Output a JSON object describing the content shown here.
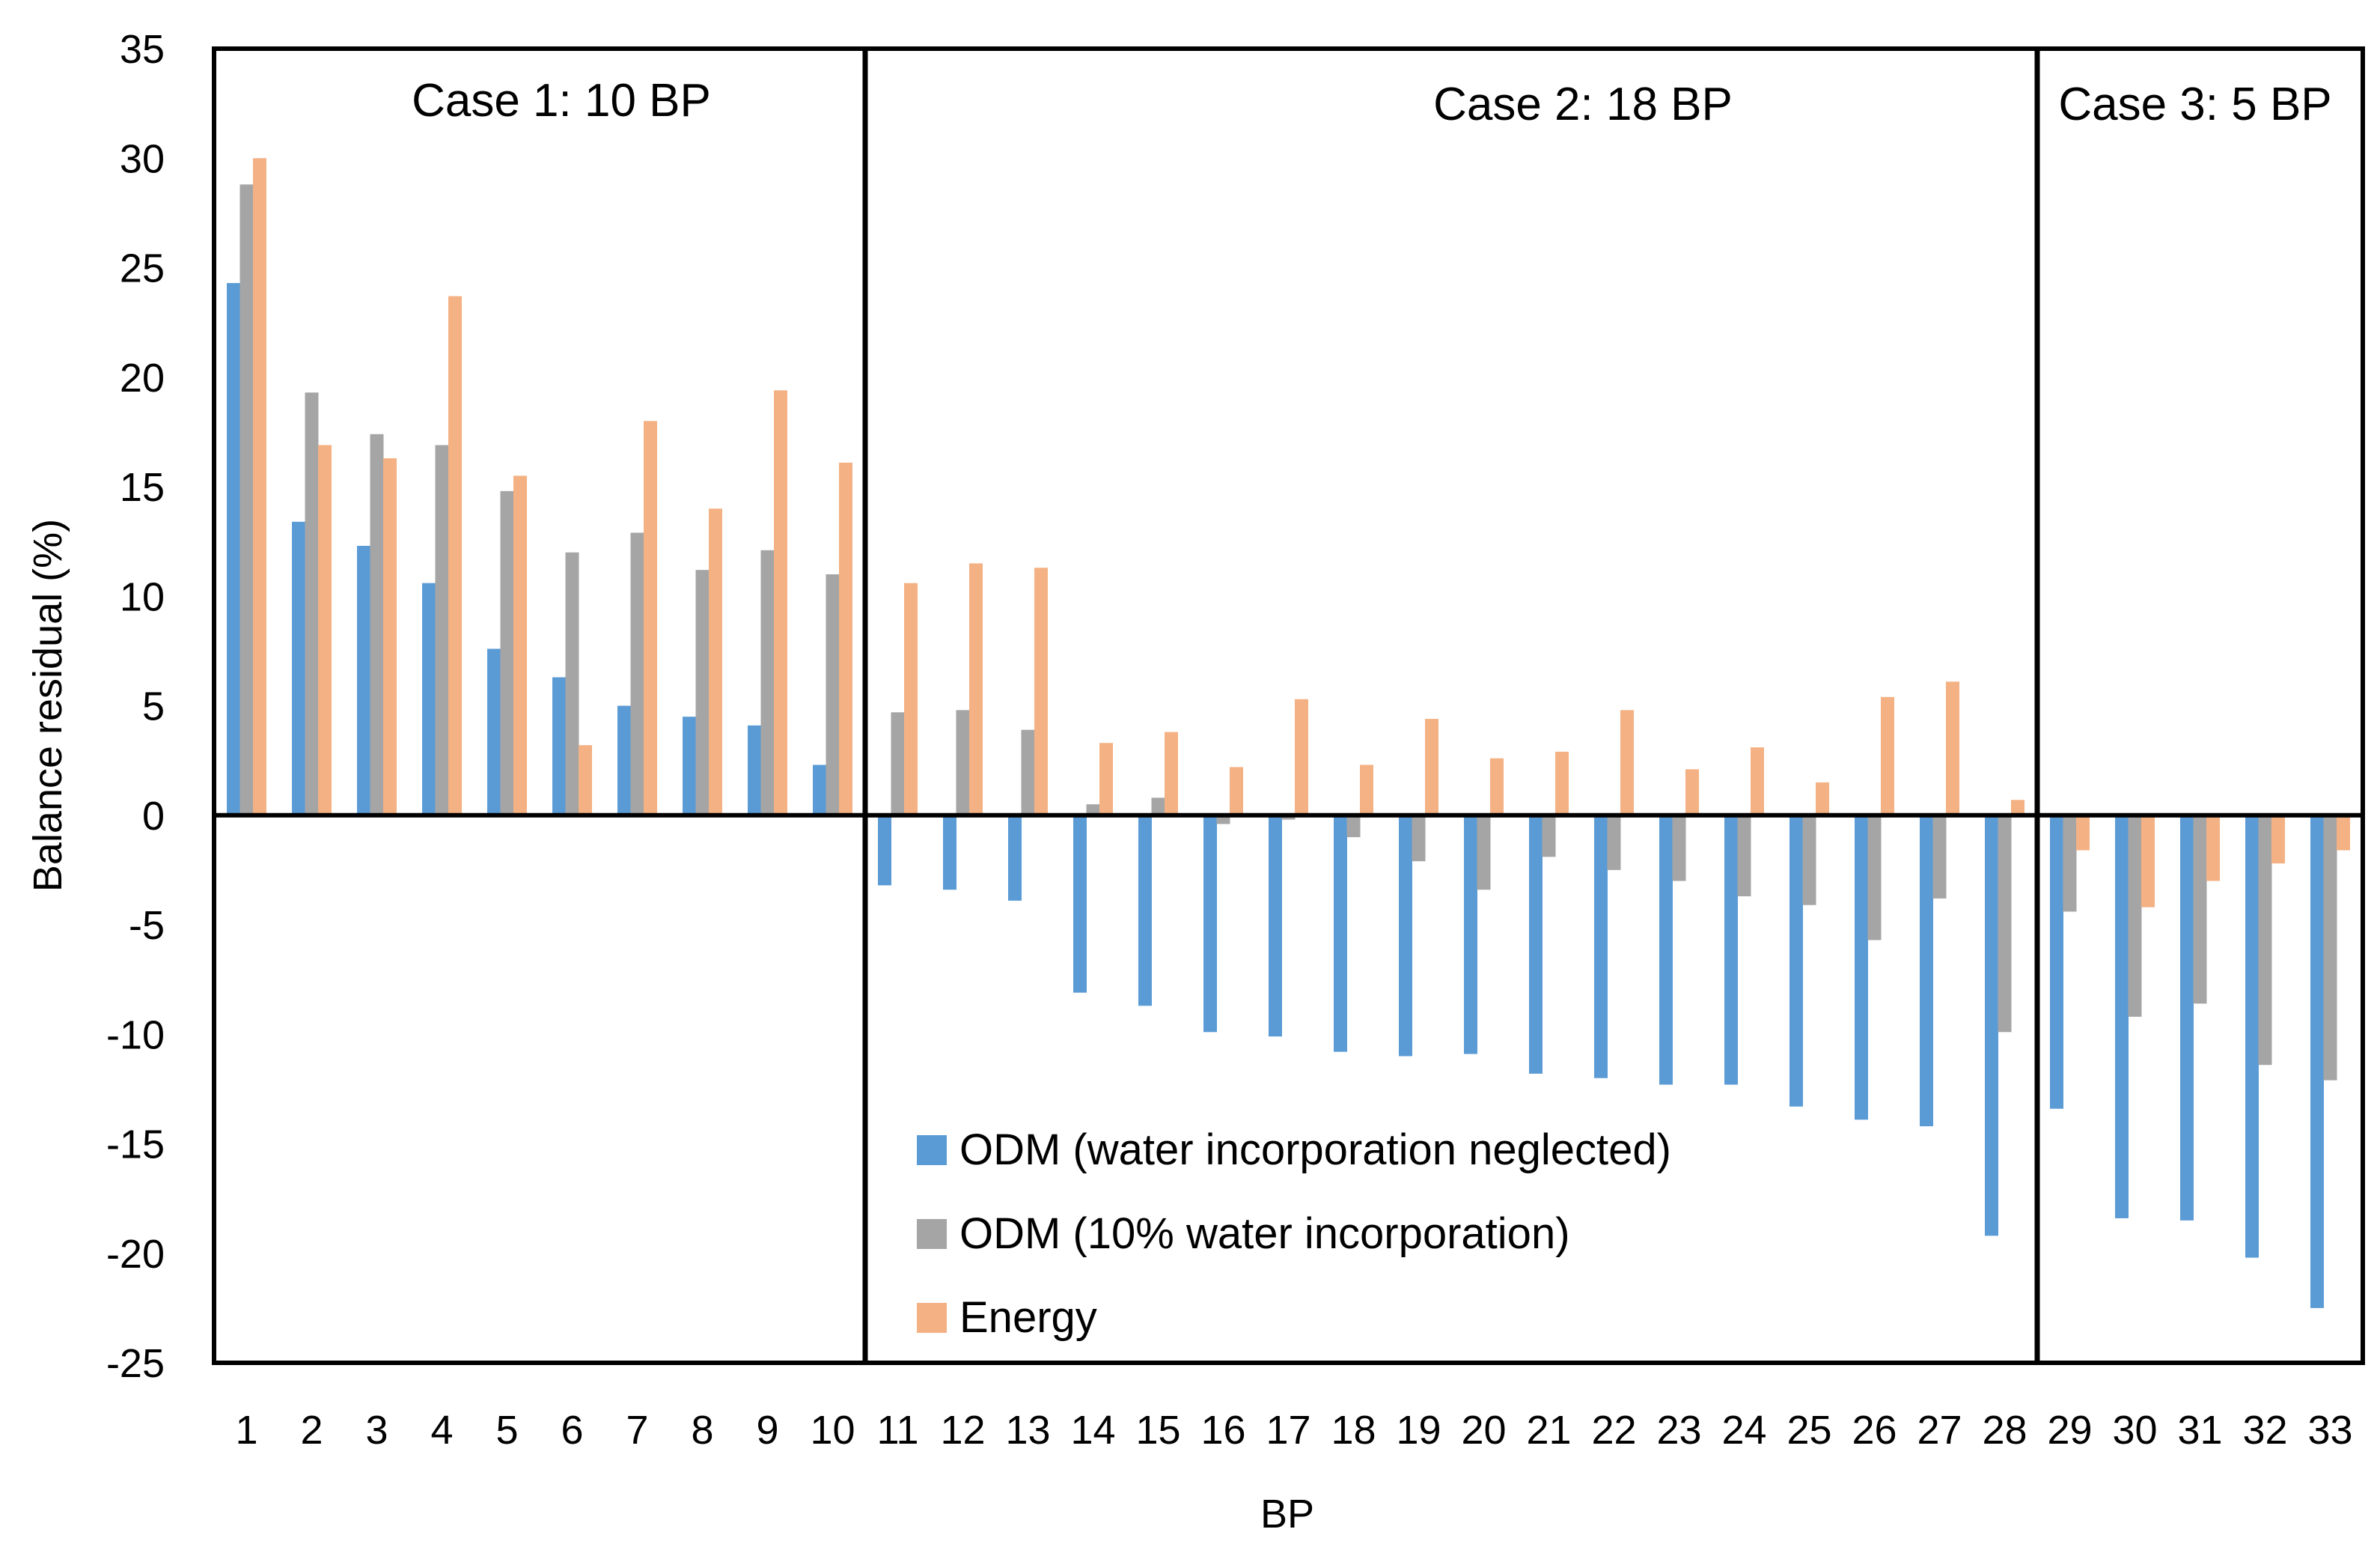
{
  "chart_data": {
    "type": "bar",
    "title": "",
    "xlabel": "BP",
    "ylabel": "Balance residual (%)",
    "ylim": [
      -25,
      35
    ],
    "yticks": [
      35,
      30,
      25,
      20,
      15,
      10,
      5,
      0,
      -5,
      -10,
      -15,
      -20,
      -25
    ],
    "grid": false,
    "legend_position": "bottom-center",
    "categories": [
      "1",
      "2",
      "3",
      "4",
      "5",
      "6",
      "7",
      "8",
      "9",
      "10",
      "11",
      "12",
      "13",
      "14",
      "15",
      "16",
      "17",
      "18",
      "19",
      "20",
      "21",
      "22",
      "23",
      "24",
      "25",
      "26",
      "27",
      "28",
      "29",
      "30",
      "31",
      "32",
      "33"
    ],
    "series": [
      {
        "name": "ODM (water incorporation neglected)",
        "color": "#5B9BD5",
        "values": [
          24.3,
          13.4,
          12.3,
          10.6,
          7.6,
          6.3,
          5.0,
          4.5,
          4.1,
          2.3,
          -3.2,
          -3.4,
          -3.9,
          -8.1,
          -8.7,
          -9.9,
          -10.1,
          -10.8,
          -11.0,
          -10.9,
          -11.8,
          -12.0,
          -12.3,
          -12.3,
          -13.3,
          -13.9,
          -14.2,
          -19.2,
          -13.4,
          -18.4,
          -18.5,
          -20.2,
          -22.5
        ]
      },
      {
        "name": "ODM (10% water incorporation)",
        "color": "#A5A5A5",
        "values": [
          28.8,
          19.3,
          17.4,
          16.9,
          14.8,
          12.0,
          12.9,
          11.2,
          12.1,
          11.0,
          4.7,
          4.8,
          3.9,
          0.5,
          0.8,
          -0.4,
          -0.2,
          -1.0,
          -2.1,
          -3.4,
          -1.9,
          -2.5,
          -3.0,
          -3.7,
          -4.1,
          -5.7,
          -3.8,
          -9.9,
          -4.4,
          -9.2,
          -8.6,
          -11.4,
          -12.1
        ]
      },
      {
        "name": "Energy",
        "color": "#F4B183",
        "values": [
          30.0,
          16.9,
          16.3,
          23.7,
          15.5,
          3.2,
          18.0,
          14.0,
          19.4,
          16.1,
          10.6,
          11.5,
          11.3,
          3.3,
          3.8,
          2.2,
          5.3,
          2.3,
          4.4,
          2.6,
          2.9,
          4.8,
          2.1,
          3.1,
          1.5,
          5.4,
          6.1,
          0.7,
          -1.6,
          -4.2,
          -3.0,
          -2.2,
          -1.6
        ]
      }
    ],
    "annotations": [
      "Case 1: 10 BP",
      "Case 2: 18 BP",
      "Case 3: 5 BP"
    ],
    "case_group_sizes": [
      10,
      18,
      5
    ]
  }
}
